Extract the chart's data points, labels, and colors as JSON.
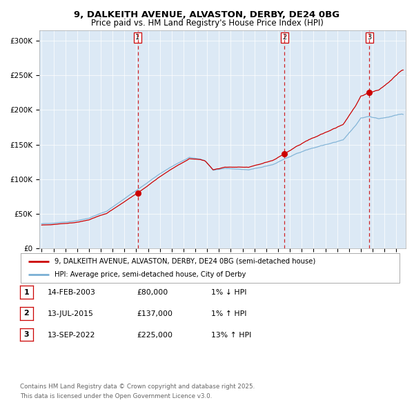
{
  "title_line1": "9, DALKEITH AVENUE, ALVASTON, DERBY, DE24 0BG",
  "title_line2": "Price paid vs. HM Land Registry's House Price Index (HPI)",
  "bg_color": "#dce9f5",
  "fig_bg_color": "#ffffff",
  "red_line_color": "#cc0000",
  "blue_line_color": "#7aafd4",
  "sale_marker_color": "#cc0000",
  "dashed_line_color": "#cc0000",
  "ylabel_ticks": [
    "£0",
    "£50K",
    "£100K",
    "£150K",
    "£200K",
    "£250K",
    "£300K"
  ],
  "ytick_vals": [
    0,
    50000,
    100000,
    150000,
    200000,
    250000,
    300000
  ],
  "ylim": [
    0,
    315000
  ],
  "xlim_start": 1994.8,
  "xlim_end": 2025.8,
  "sale1_date": 2003.12,
  "sale1_price": 80000,
  "sale2_date": 2015.53,
  "sale2_price": 137000,
  "sale3_date": 2022.71,
  "sale3_price": 225000,
  "legend_label1": "9, DALKEITH AVENUE, ALVASTON, DERBY, DE24 0BG (semi-detached house)",
  "legend_label2": "HPI: Average price, semi-detached house, City of Derby",
  "table_data": [
    [
      "1",
      "14-FEB-2003",
      "£80,000",
      "1% ↓ HPI"
    ],
    [
      "2",
      "13-JUL-2015",
      "£137,000",
      "1% ↑ HPI"
    ],
    [
      "3",
      "13-SEP-2022",
      "£225,000",
      "13% ↑ HPI"
    ]
  ],
  "footer_text": "Contains HM Land Registry data © Crown copyright and database right 2025.\nThis data is licensed under the Open Government Licence v3.0."
}
